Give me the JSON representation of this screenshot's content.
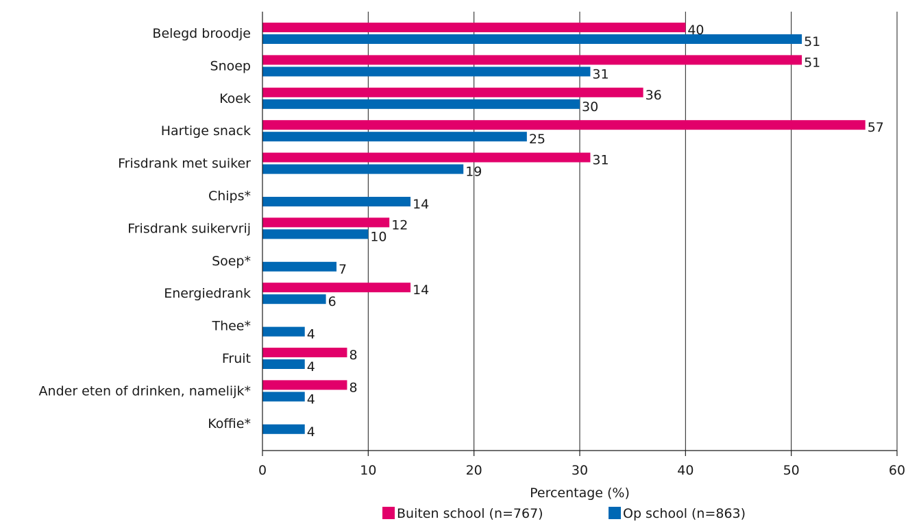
{
  "chart_data": {
    "type": "bar",
    "orientation": "horizontal",
    "categories": [
      "Belegd broodje",
      "Snoep",
      "Koek",
      "Hartige snack",
      "Frisdrank met suiker",
      "Chips*",
      "Frisdrank suikervrij",
      "Soep*",
      "Energiedrank",
      "Thee*",
      "Fruit",
      "Ander eten of drinken, namelijk*",
      "Koffie*"
    ],
    "series": [
      {
        "name": "Buiten school (n=767)",
        "color": "#e2006a",
        "values": [
          40,
          51,
          36,
          57,
          31,
          null,
          12,
          null,
          14,
          null,
          8,
          8,
          null
        ]
      },
      {
        "name": "Op school (n=863)",
        "color": "#0068b4",
        "values": [
          51,
          31,
          30,
          25,
          19,
          14,
          10,
          7,
          6,
          4,
          4,
          4,
          4
        ]
      }
    ],
    "xlabel": "Percentage (%)",
    "ylabel": "",
    "xlim": [
      0,
      60
    ],
    "xticks": [
      0,
      10,
      20,
      30,
      40,
      50,
      60
    ],
    "grid": "vertical",
    "legend": "bottom"
  }
}
